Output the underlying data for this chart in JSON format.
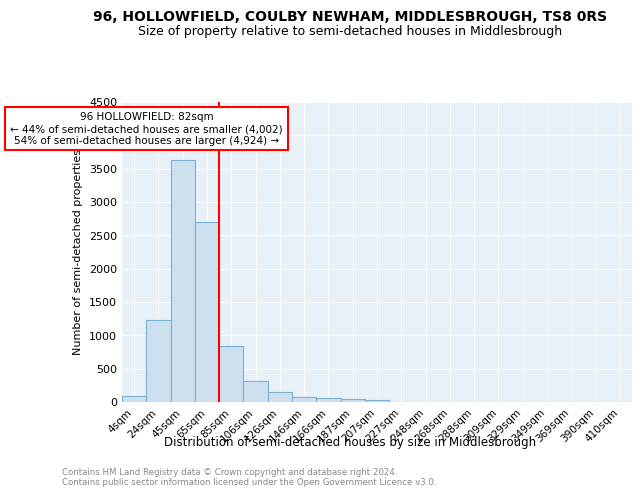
{
  "title": "96, HOLLOWFIELD, COULBY NEWHAM, MIDDLESBROUGH, TS8 0RS",
  "subtitle": "Size of property relative to semi-detached houses in Middlesbrough",
  "xlabel": "Distribution of semi-detached houses by size in Middlesbrough",
  "ylabel": "Number of semi-detached properties",
  "footnote": "Contains HM Land Registry data © Crown copyright and database right 2024.\nContains public sector information licensed under the Open Government Licence v3.0.",
  "bar_categories": [
    "4sqm",
    "24sqm",
    "45sqm",
    "65sqm",
    "85sqm",
    "106sqm",
    "126sqm",
    "146sqm",
    "166sqm",
    "187sqm",
    "207sqm",
    "227sqm",
    "248sqm",
    "268sqm",
    "288sqm",
    "309sqm",
    "329sqm",
    "349sqm",
    "369sqm",
    "390sqm",
    "410sqm"
  ],
  "bar_values": [
    90,
    1230,
    3630,
    2700,
    840,
    320,
    155,
    75,
    55,
    45,
    35,
    0,
    0,
    0,
    0,
    0,
    0,
    0,
    0,
    0,
    0
  ],
  "bar_color": "#cce0f0",
  "bar_edgecolor": "#7ab0d4",
  "vline_color": "red",
  "vline_idx": 3.5,
  "annotation_title": "96 HOLLOWFIELD: 82sqm",
  "annotation_line1": "← 44% of semi-detached houses are smaller (4,002)",
  "annotation_line2": "54% of semi-detached houses are larger (4,924) →",
  "annotation_box_color": "white",
  "annotation_box_edgecolor": "red",
  "ylim": [
    0,
    4500
  ],
  "yticks": [
    0,
    500,
    1000,
    1500,
    2000,
    2500,
    3000,
    3500,
    4000,
    4500
  ],
  "plot_bg_color": "#e8f0f8",
  "title_fontsize": 10,
  "subtitle_fontsize": 9,
  "footnote_color": "#888888"
}
